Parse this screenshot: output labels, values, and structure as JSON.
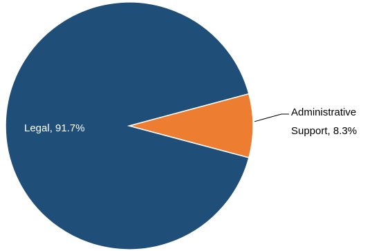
{
  "chart_data": {
    "type": "pie",
    "categories": [
      "Legal",
      "Administrative Support"
    ],
    "values": [
      91.7,
      8.3
    ],
    "labels": [
      {
        "lines": [
          "Legal, 91.7%"
        ]
      },
      {
        "lines": [
          "Administrative",
          "Support, 8.3%"
        ]
      }
    ],
    "colors": [
      "#1F4E79",
      "#ED7D31"
    ],
    "start_angle_deg": 15,
    "legend": "none"
  }
}
